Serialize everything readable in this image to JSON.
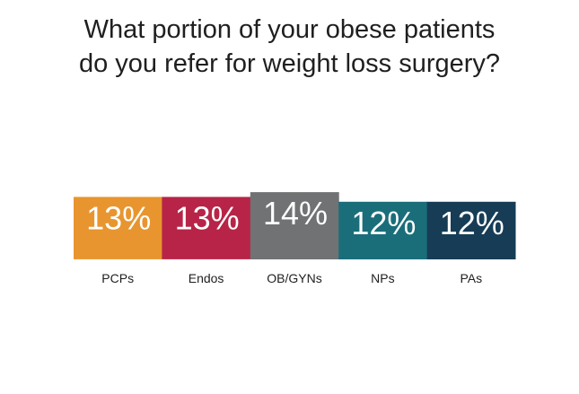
{
  "chart_data": {
    "type": "bar",
    "title_lines": [
      "What portion of your obese patients",
      "do you refer for weight loss surgery?"
    ],
    "categories": [
      "PCPs",
      "Endos",
      "OB/GYNs",
      "NPs",
      "PAs"
    ],
    "values": [
      13,
      13,
      14,
      12,
      12
    ],
    "value_labels": [
      "13%",
      "13%",
      "14%",
      "12%",
      "12%"
    ],
    "colors": [
      "#e8952f",
      "#b72447",
      "#707273",
      "#1a6e7a",
      "#173d56"
    ],
    "xlabel": "",
    "ylabel": "",
    "grid": false,
    "legend": "none"
  }
}
